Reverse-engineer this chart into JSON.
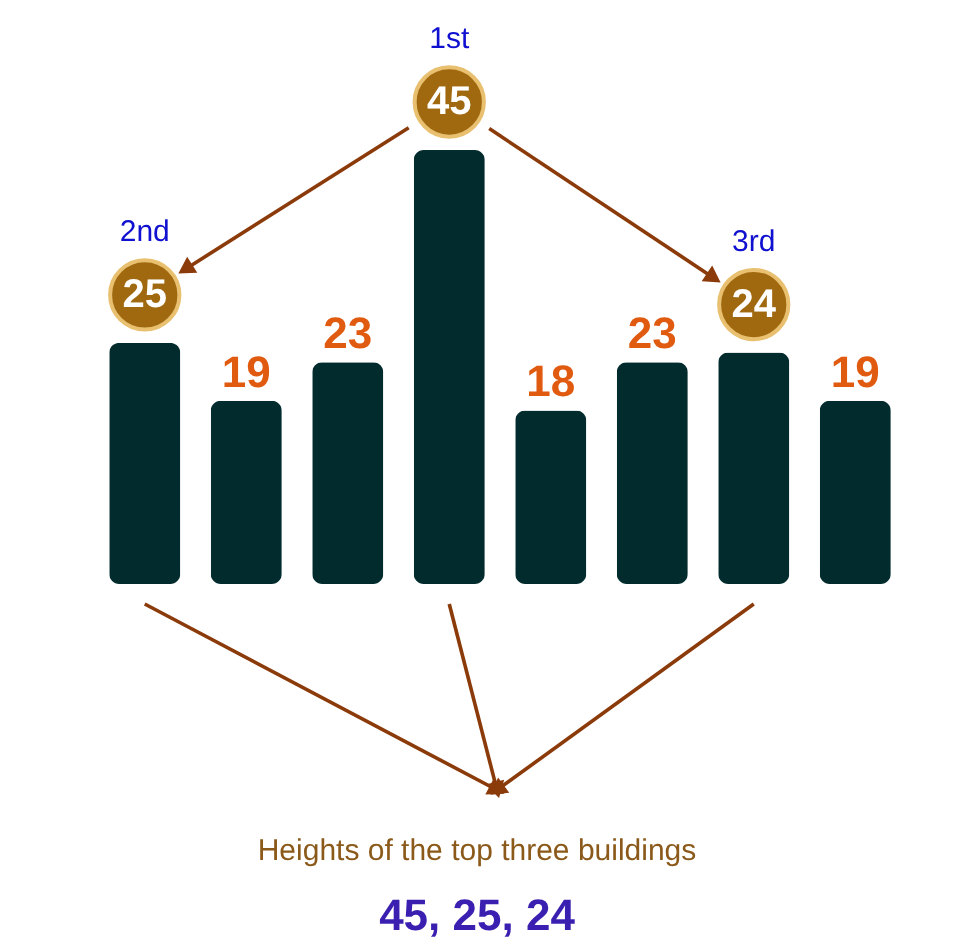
{
  "chart_data": {
    "type": "bar",
    "categories": [
      null,
      null,
      null,
      null,
      null,
      null,
      null,
      null
    ],
    "values": [
      25,
      19,
      23,
      45,
      18,
      23,
      24,
      19
    ],
    "color": "#022b2d",
    "data_labels": true,
    "annotations": [
      "1st",
      "2nd",
      "3rd",
      "Heights of the top three buildings",
      "45, 25, 24"
    ]
  }
}
